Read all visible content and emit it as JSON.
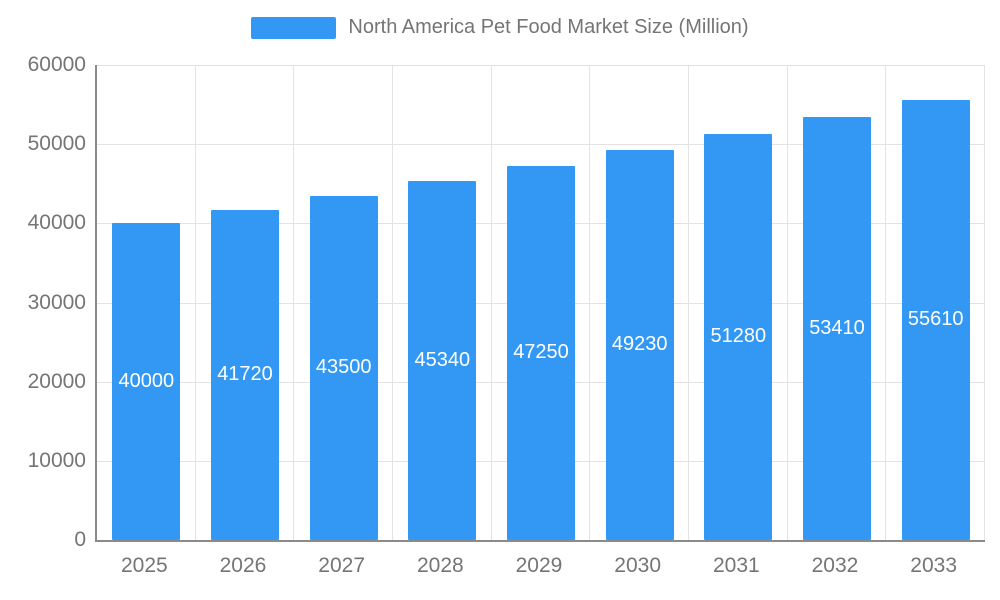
{
  "legend": {
    "label": "North America Pet Food Market Size (Million)"
  },
  "chart_data": {
    "type": "bar",
    "title": "North America Pet Food Market Size (Million)",
    "categories": [
      "2025",
      "2026",
      "2027",
      "2028",
      "2029",
      "2030",
      "2031",
      "2032",
      "2033"
    ],
    "values": [
      40000,
      41720,
      43500,
      45340,
      47250,
      49230,
      51280,
      53410,
      55610
    ],
    "xlabel": "",
    "ylabel": "",
    "ylim": [
      0,
      60000
    ],
    "y_ticks": [
      0,
      10000,
      20000,
      30000,
      40000,
      50000,
      60000
    ],
    "grid": true,
    "legend_position": "top",
    "bar_color": "#3398f3",
    "data_label_color": "#ffffff",
    "axis_text_color": "#757575",
    "grid_color": "#e3e3e3"
  }
}
